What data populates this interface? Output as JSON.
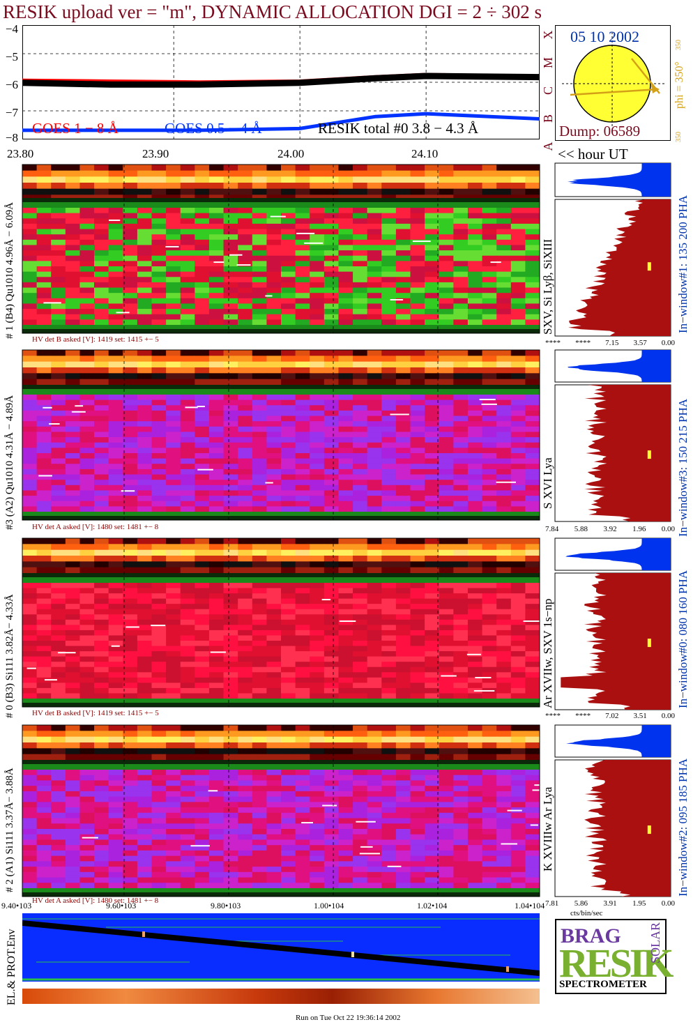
{
  "title": "RESIK upload ver = \"m\", DYNAMIC ALLOCATION  DGI =   2 ÷ 302 s",
  "goes_panel": {
    "y_ticks": [
      "−4",
      "−5",
      "−6",
      "−7",
      "−8"
    ],
    "legend_goes1": "GOES 1 − 8 Å",
    "legend_goes2": "GOES 0.5 − 4 Å",
    "legend_resik": "RESIK total #0  3.8 − 4.3 Å",
    "class_letters": [
      "X",
      "M",
      "C",
      "B",
      "A"
    ],
    "hour_ticks": [
      "23.80",
      "23.90",
      "24.00",
      "24.10"
    ],
    "hour_unit": "<< hour UT",
    "colors": {
      "goes1": "#ff0000",
      "goes2": "#0033ff",
      "resik": "#000000"
    }
  },
  "sun_panel": {
    "date": "05 10 2002",
    "dump": "Dump: 06589",
    "phi_label": "phi = 350°",
    "phi_small_top": "350",
    "phi_small_bottom": "350"
  },
  "detectors": [
    {
      "label": "# 1 (B4) Qu1010 4.96Å − 6.09Å",
      "lines": "SXV, Si Lyβ, SiXIII",
      "window": "In−window#1:  135 200 PHA",
      "hv": "HV det B asked [V]:  1419 set:  1415  +−    5",
      "hist_ticks": [
        "****",
        "****",
        "7.15",
        "3.57",
        "0.00"
      ]
    },
    {
      "label": "#3 (A2) Qu1010  4.31Å − 4.89Å",
      "lines": "S XVI Lya",
      "window": "In−window#3:  150 215 PHA",
      "hv": "HV det A asked [V]:  1480 set:  1481  +−    8",
      "hist_ticks": [
        "7.84",
        "5.88",
        "3.92",
        "1.96",
        "0.00"
      ]
    },
    {
      "label": "# 0 (B3) Si111  3.82Å− 4.33Å",
      "lines": "Ar XVIIw,  SXV 1s−np",
      "window": "In−window#0:  080 160 PHA",
      "hv": "HV det B asked [V]:  1419 set:  1415  +−    5",
      "hist_ticks": [
        "****",
        "****",
        "7.02",
        "3.51",
        "0.00"
      ]
    },
    {
      "label": "# 2 (A1) Si111  3.37Å− 3.88Å",
      "lines": "K XVIIIw  Ar Lya",
      "window": "In−window#2:  095 185 PHA",
      "hv": "HV det A asked [V]:  1480 set:  1481  +−    8",
      "hist_ticks": [
        "7.81",
        "5.86",
        "3.91",
        "1.95",
        "0.00"
      ]
    }
  ],
  "bottom_axis": {
    "ticks": [
      "9.40•103",
      "9.60•103",
      "9.80•103",
      "1.00•104",
      "1.02•104",
      "1.04•104"
    ],
    "hist_unit": "cts/bin/sec"
  },
  "env_label": "EL.& PROT.Env",
  "logo": {
    "letters_top": "BRAG",
    "main": "RESIK",
    "side": "SOLAR",
    "bottom": "SPECTROMETER"
  },
  "footer": "Run on Tue Oct 22 19:36:14 2002",
  "chart_data": {
    "type": "line",
    "xlabel": "hour UT",
    "ylabel": "",
    "x_range": [
      23.78,
      24.19
    ],
    "ylim": [
      -8,
      -4
    ],
    "series": [
      {
        "name": "GOES 1 − 8 Å",
        "x": [
          23.78,
          23.85,
          23.92,
          24.0,
          24.06,
          24.1,
          24.14,
          24.19
        ],
        "values": [
          -5.92,
          -5.95,
          -5.98,
          -5.95,
          -5.8,
          -5.72,
          -5.75,
          -5.78
        ]
      },
      {
        "name": "GOES 0.5 − 4 Å",
        "x": [
          23.78,
          23.85,
          23.92,
          24.0,
          24.06,
          24.1,
          24.14,
          24.19
        ],
        "values": [
          -7.68,
          -7.68,
          -7.68,
          -7.62,
          -7.2,
          -7.1,
          -7.18,
          -7.28
        ]
      },
      {
        "name": "RESIK total #0  3.8 − 4.3 Å",
        "x": [
          23.78,
          23.85,
          23.92,
          24.0,
          24.06,
          24.1,
          24.14,
          24.19
        ],
        "values": [
          -6.02,
          -6.08,
          -6.08,
          -6.02,
          -5.86,
          -5.78,
          -5.8,
          -5.82
        ]
      }
    ],
    "grid": true
  }
}
